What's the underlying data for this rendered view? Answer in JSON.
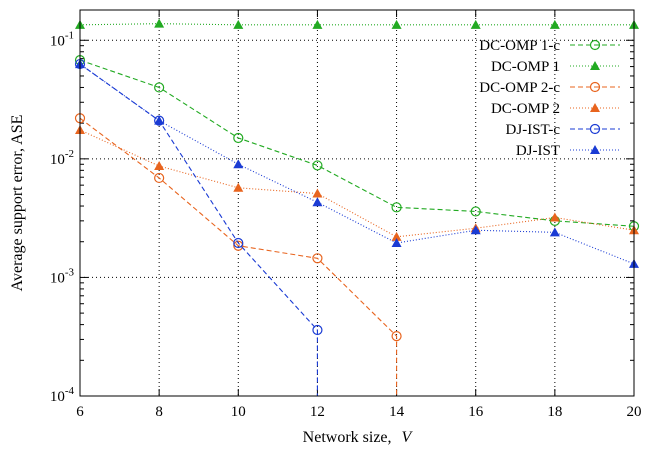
{
  "chart_data": {
    "type": "line",
    "title": "",
    "xlabel": "Network size,",
    "xlabel_var": "V",
    "ylabel": "Average support error, ASE",
    "xlim": [
      6,
      20
    ],
    "ylim": [
      0.0001,
      0.18
    ],
    "yscale": "log",
    "grid": true,
    "legend_position": "top-right",
    "x_ticks": [
      {
        "value": 6,
        "label": "6"
      },
      {
        "value": 8,
        "label": "8"
      },
      {
        "value": 10,
        "label": "10"
      },
      {
        "value": 12,
        "label": "12"
      },
      {
        "value": 14,
        "label": "14"
      },
      {
        "value": 16,
        "label": "16"
      },
      {
        "value": 18,
        "label": "18"
      },
      {
        "value": 20,
        "label": "20"
      }
    ],
    "y_ticks": [
      {
        "value": 0.0001,
        "base": "10",
        "exp": "-4"
      },
      {
        "value": 0.001,
        "base": "10",
        "exp": "-3"
      },
      {
        "value": 0.01,
        "base": "10",
        "exp": "-2"
      },
      {
        "value": 0.1,
        "base": "10",
        "exp": "-1"
      }
    ],
    "series": [
      {
        "name": "DC-OMP 1-c",
        "color": "#22aa22",
        "dash": "5,3",
        "marker": "circle",
        "x": [
          6,
          8,
          10,
          12,
          14,
          16,
          18,
          20
        ],
        "y": [
          0.068,
          0.04,
          0.015,
          0.0088,
          0.0039,
          0.0036,
          0.003,
          0.0027
        ]
      },
      {
        "name": "DC-OMP 1",
        "color": "#22aa22",
        "dash": "1,2",
        "marker": "triangle",
        "x": [
          6,
          8,
          10,
          12,
          14,
          16,
          18,
          20
        ],
        "y": [
          0.135,
          0.138,
          0.135,
          0.135,
          0.135,
          0.135,
          0.135,
          0.135
        ]
      },
      {
        "name": "DC-OMP 2-c",
        "color": "#e8641e",
        "dash": "5,3",
        "marker": "circle",
        "x": [
          6,
          8,
          10,
          12,
          14,
          14
        ],
        "y": [
          0.022,
          0.0069,
          0.00185,
          0.00145,
          0.00032,
          0.0001
        ]
      },
      {
        "name": "DC-OMP 2",
        "color": "#e8641e",
        "dash": "1,2",
        "marker": "triangle",
        "x": [
          6,
          8,
          10,
          12,
          14,
          16,
          18,
          20
        ],
        "y": [
          0.0175,
          0.0087,
          0.0057,
          0.0051,
          0.0022,
          0.0026,
          0.0032,
          0.0025
        ]
      },
      {
        "name": "DJ-IST-c",
        "color": "#1a3bd4",
        "dash": "5,3",
        "marker": "circle",
        "x": [
          6,
          8,
          10,
          12,
          12
        ],
        "y": [
          0.063,
          0.021,
          0.00195,
          0.00036,
          0.0001
        ]
      },
      {
        "name": "DJ-IST",
        "color": "#1a3bd4",
        "dash": "1,2",
        "marker": "triangle",
        "x": [
          6,
          8,
          10,
          12,
          14,
          16,
          18,
          20
        ],
        "y": [
          0.063,
          0.021,
          0.009,
          0.0043,
          0.00195,
          0.0025,
          0.0024,
          0.0013
        ]
      }
    ]
  }
}
